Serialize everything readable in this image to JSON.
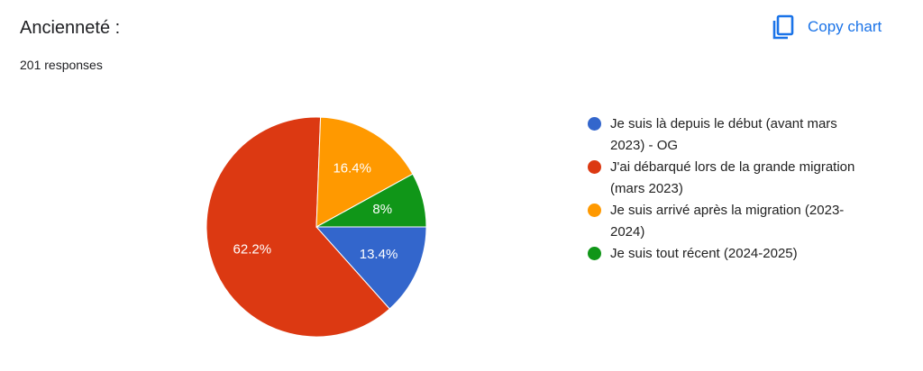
{
  "chart_data": {
    "type": "pie",
    "title": "Ancienneté :",
    "subtitle": "201 responses",
    "button": "Copy chart",
    "categories": [
      "Je suis là depuis le début (avant mars 2023) - OG",
      "J'ai débarqué lors de la grande migration (mars 2023)",
      "Je suis arrivé après la migration (2023-2024)",
      "Je suis tout récent (2024-2025)"
    ],
    "values": [
      13.4,
      62.2,
      16.4,
      8
    ],
    "value_labels": [
      "13.4%",
      "62.2%",
      "16.4%",
      "8%"
    ],
    "colors": [
      "#3366cc",
      "#dc3912",
      "#ff9900",
      "#109618"
    ],
    "legend": "right"
  }
}
